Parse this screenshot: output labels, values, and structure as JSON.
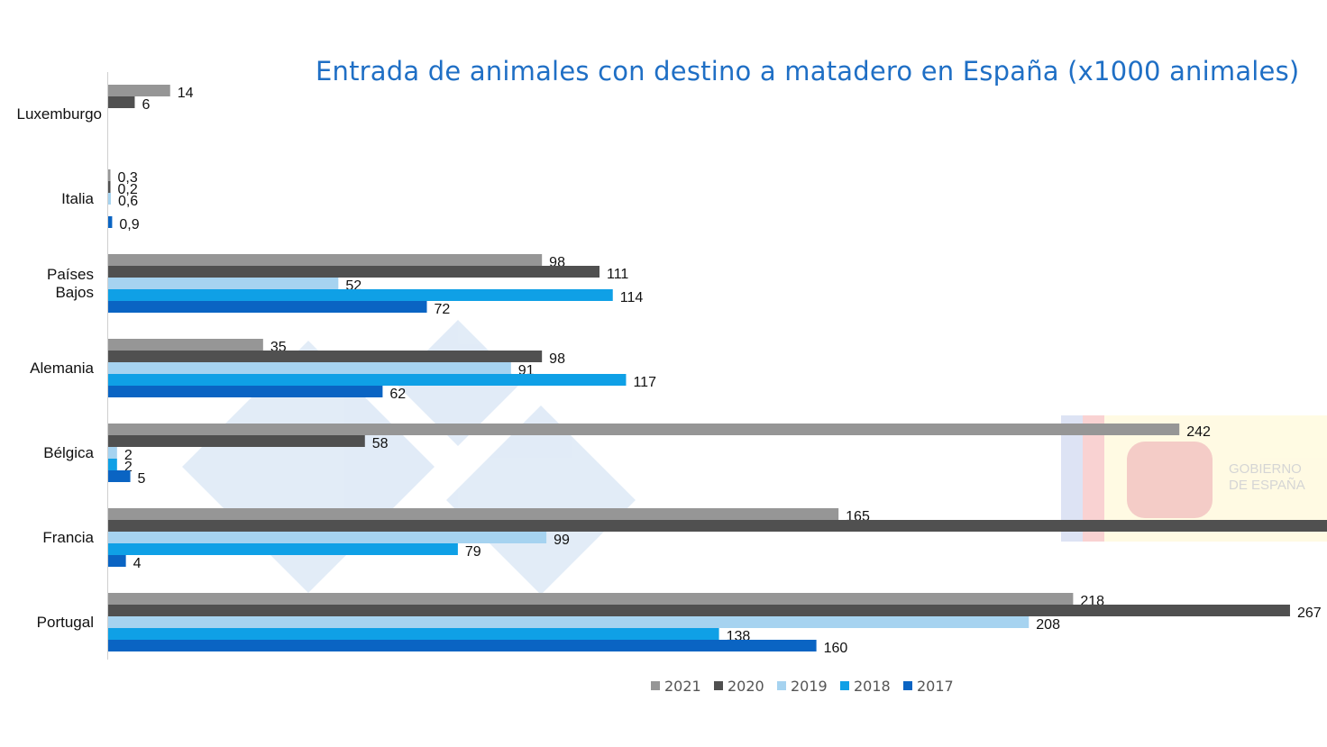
{
  "chart_data": {
    "type": "bar",
    "orientation": "horizontal",
    "title": "Entrada de animales con destino a matadero en España (x1000 animales)",
    "categories": [
      "Luxemburgo",
      "Italia",
      "Países Bajos",
      "Alemania",
      "Bélgica",
      "Francia",
      "Portugal"
    ],
    "series": [
      {
        "name": "2021",
        "color": "#969696",
        "values": [
          14,
          0.3,
          98,
          35,
          242,
          165,
          218
        ],
        "labels": [
          "14",
          "0,3",
          "98",
          "35",
          "242",
          "165",
          "218"
        ]
      },
      {
        "name": "2020",
        "color": "#505050",
        "values": [
          6,
          0.2,
          111,
          98,
          58,
          null,
          267
        ],
        "labels": [
          "6",
          "0,2",
          "111",
          "98",
          "58",
          null,
          "267"
        ],
        "extends_beyond_view": [
          "Francia"
        ]
      },
      {
        "name": "2019",
        "color": "#a6d3f0",
        "values": [
          null,
          0.6,
          52,
          91,
          2,
          99,
          208
        ],
        "labels": [
          null,
          "0,6",
          "52",
          "91",
          "2",
          "99",
          "208"
        ]
      },
      {
        "name": "2018",
        "color": "#0fa0e6",
        "values": [
          null,
          null,
          114,
          117,
          2,
          79,
          138
        ],
        "labels": [
          null,
          null,
          "114",
          "117",
          "2",
          "79",
          "138"
        ]
      },
      {
        "name": "2017",
        "color": "#0a64c3",
        "values": [
          null,
          0.9,
          72,
          62,
          5,
          4,
          160
        ],
        "labels": [
          null,
          "0,9",
          "72",
          "62",
          "5",
          "4",
          "160"
        ]
      }
    ],
    "xlim": [
      0,
      275
    ],
    "grid": false,
    "legend": "bottom-center",
    "watermark": "GOBIERNO DE ESPAÑA"
  }
}
